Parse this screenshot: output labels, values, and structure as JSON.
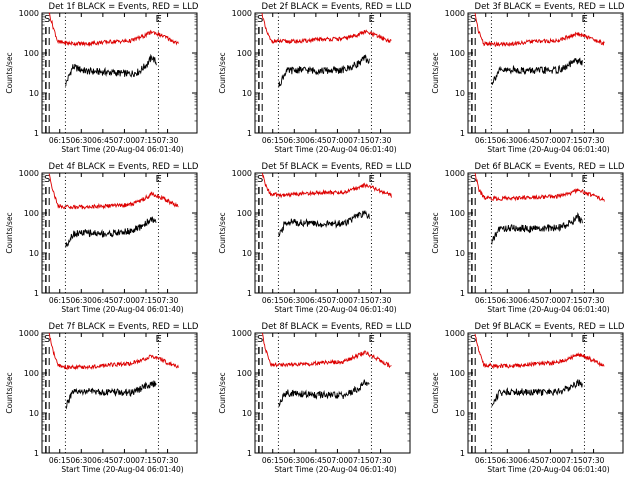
{
  "page": {
    "x_ticks": [
      "06:15",
      "06:30",
      "06:45",
      "07:00",
      "07:15",
      "07:30"
    ],
    "y_ticks": [
      "1",
      "10",
      "100",
      "1000"
    ],
    "ylabel": "Counts/sec",
    "xlabel": "Start Time (20-Aug-04 06:01:40)",
    "marker_s": "S",
    "marker_e": "E",
    "colors": {
      "events": "#000000",
      "lld": "#dd0000",
      "axes": "#000000"
    }
  },
  "chart_data": [
    {
      "type": "line",
      "title": "Det 1f BLACK = Events, RED = LLD",
      "x_range_minutes": [
        6.0,
        7.76
      ],
      "ylim": [
        1,
        1000
      ],
      "yscale": "log",
      "grid": false,
      "time_axis_minutes": [
        6.0,
        7.76
      ],
      "series": [
        {
          "name": "Events",
          "x": [
            6.27,
            6.35,
            6.5,
            6.75,
            7.0,
            7.1,
            7.2,
            7.25,
            7.3
          ],
          "y": [
            17,
            45,
            35,
            33,
            30,
            34,
            55,
            80,
            55
          ]
        },
        {
          "name": "LLD",
          "x": [
            6.08,
            6.12,
            6.18,
            6.3,
            6.5,
            6.75,
            7.0,
            7.15,
            7.25,
            7.4,
            7.55
          ],
          "y": [
            1000,
            500,
            190,
            175,
            170,
            190,
            200,
            260,
            340,
            250,
            170
          ]
        }
      ]
    },
    {
      "type": "line",
      "title": "Det 2f BLACK = Events, RED = LLD",
      "x_range_minutes": [
        6.0,
        7.76
      ],
      "ylim": [
        1,
        1000
      ],
      "yscale": "log",
      "grid": false,
      "series": [
        {
          "name": "Events",
          "x": [
            6.27,
            6.35,
            6.5,
            6.75,
            7.0,
            7.1,
            7.2,
            7.25,
            7.3
          ],
          "y": [
            15,
            35,
            38,
            36,
            37,
            45,
            60,
            75,
            60
          ]
        },
        {
          "name": "LLD",
          "x": [
            6.08,
            6.12,
            6.18,
            6.3,
            6.5,
            6.75,
            7.0,
            7.15,
            7.25,
            7.4,
            7.55
          ],
          "y": [
            1000,
            400,
            200,
            195,
            195,
            220,
            225,
            280,
            340,
            260,
            190
          ]
        }
      ]
    },
    {
      "type": "line",
      "title": "Det 3f BLACK = Events, RED = LLD",
      "x_range_minutes": [
        6.0,
        7.76
      ],
      "ylim": [
        1,
        1000
      ],
      "yscale": "log",
      "grid": false,
      "series": [
        {
          "name": "Events",
          "x": [
            6.27,
            6.35,
            6.5,
            6.75,
            7.0,
            7.1,
            7.2,
            7.25,
            7.3
          ],
          "y": [
            18,
            35,
            38,
            36,
            37,
            42,
            60,
            65,
            55
          ]
        },
        {
          "name": "LLD",
          "x": [
            6.08,
            6.12,
            6.18,
            6.3,
            6.5,
            6.75,
            7.0,
            7.15,
            7.25,
            7.4,
            7.55
          ],
          "y": [
            1000,
            350,
            170,
            165,
            170,
            195,
            200,
            260,
            300,
            230,
            170
          ]
        }
      ]
    },
    {
      "type": "line",
      "title": "Det 4f BLACK = Events, RED = LLD",
      "x_range_minutes": [
        6.0,
        7.76
      ],
      "ylim": [
        1,
        1000
      ],
      "yscale": "log",
      "grid": false,
      "series": [
        {
          "name": "Events",
          "x": [
            6.27,
            6.35,
            6.5,
            6.75,
            7.0,
            7.1,
            7.2,
            7.25,
            7.3
          ],
          "y": [
            15,
            30,
            32,
            30,
            35,
            42,
            60,
            75,
            50
          ]
        },
        {
          "name": "LLD",
          "x": [
            6.08,
            6.12,
            6.18,
            6.3,
            6.5,
            6.75,
            7.0,
            7.15,
            7.25,
            7.4,
            7.55
          ],
          "y": [
            1000,
            400,
            150,
            140,
            140,
            150,
            160,
            220,
            300,
            220,
            140
          ]
        }
      ]
    },
    {
      "type": "line",
      "title": "Det 5f BLACK = Events, RED = LLD",
      "x_range_minutes": [
        6.0,
        7.76
      ],
      "ylim": [
        1,
        1000
      ],
      "yscale": "log",
      "grid": false,
      "series": [
        {
          "name": "Events",
          "x": [
            6.27,
            6.35,
            6.5,
            6.75,
            7.0,
            7.1,
            7.2,
            7.25,
            7.3
          ],
          "y": [
            25,
            60,
            58,
            52,
            55,
            70,
            90,
            95,
            80
          ]
        },
        {
          "name": "LLD",
          "x": [
            6.08,
            6.12,
            6.18,
            6.3,
            6.5,
            6.75,
            7.0,
            7.15,
            7.25,
            7.4,
            7.55
          ],
          "y": [
            1000,
            500,
            290,
            280,
            300,
            330,
            320,
            420,
            500,
            380,
            270
          ]
        }
      ]
    },
    {
      "type": "line",
      "title": "Det 6f BLACK = Events, RED = LLD",
      "x_range_minutes": [
        6.0,
        7.76
      ],
      "ylim": [
        1,
        1000
      ],
      "yscale": "log",
      "grid": false,
      "series": [
        {
          "name": "Events",
          "x": [
            6.27,
            6.35,
            6.5,
            6.75,
            7.0,
            7.1,
            7.2,
            7.25,
            7.3
          ],
          "y": [
            18,
            40,
            42,
            40,
            42,
            48,
            65,
            80,
            55
          ]
        },
        {
          "name": "LLD",
          "x": [
            6.08,
            6.12,
            6.18,
            6.3,
            6.5,
            6.75,
            7.0,
            7.15,
            7.25,
            7.4,
            7.55
          ],
          "y": [
            1000,
            400,
            240,
            230,
            230,
            250,
            260,
            300,
            380,
            280,
            210
          ]
        }
      ]
    },
    {
      "type": "line",
      "title": "Det 7f BLACK = Events, RED = LLD",
      "x_range_minutes": [
        6.0,
        7.76
      ],
      "ylim": [
        1,
        1000
      ],
      "yscale": "log",
      "grid": false,
      "series": [
        {
          "name": "Events",
          "x": [
            6.27,
            6.35,
            6.5,
            6.75,
            7.0,
            7.1,
            7.2,
            7.25,
            7.3
          ],
          "y": [
            15,
            32,
            35,
            33,
            32,
            38,
            50,
            55,
            50
          ]
        },
        {
          "name": "LLD",
          "x": [
            6.08,
            6.12,
            6.18,
            6.3,
            6.5,
            6.75,
            7.0,
            7.15,
            7.25,
            7.4,
            7.55
          ],
          "y": [
            1000,
            400,
            150,
            140,
            140,
            160,
            170,
            210,
            270,
            190,
            140
          ]
        }
      ]
    },
    {
      "type": "line",
      "title": "Det 8f BLACK = Events, RED = LLD",
      "x_range_minutes": [
        6.0,
        7.76
      ],
      "ylim": [
        1,
        1000
      ],
      "yscale": "log",
      "grid": false,
      "series": [
        {
          "name": "Events",
          "x": [
            6.27,
            6.35,
            6.5,
            6.75,
            7.0,
            7.1,
            7.2,
            7.25,
            7.3
          ],
          "y": [
            16,
            32,
            30,
            28,
            27,
            33,
            45,
            60,
            48
          ]
        },
        {
          "name": "LLD",
          "x": [
            6.08,
            6.12,
            6.18,
            6.3,
            6.5,
            6.75,
            7.0,
            7.15,
            7.25,
            7.4,
            7.55
          ],
          "y": [
            1000,
            400,
            165,
            160,
            160,
            180,
            190,
            260,
            330,
            220,
            140
          ]
        }
      ]
    },
    {
      "type": "line",
      "title": "Det 9f BLACK = Events, RED = LLD",
      "x_range_minutes": [
        6.0,
        7.76
      ],
      "ylim": [
        1,
        1000
      ],
      "yscale": "log",
      "grid": false,
      "series": [
        {
          "name": "Events",
          "x": [
            6.27,
            6.35,
            6.5,
            6.75,
            7.0,
            7.1,
            7.2,
            7.25,
            7.3
          ],
          "y": [
            15,
            32,
            35,
            33,
            33,
            38,
            50,
            60,
            50
          ]
        },
        {
          "name": "LLD",
          "x": [
            6.08,
            6.12,
            6.18,
            6.3,
            6.5,
            6.75,
            7.0,
            7.15,
            7.25,
            7.4,
            7.55
          ],
          "y": [
            1000,
            400,
            160,
            150,
            150,
            170,
            180,
            230,
            300,
            220,
            150
          ]
        }
      ]
    }
  ]
}
